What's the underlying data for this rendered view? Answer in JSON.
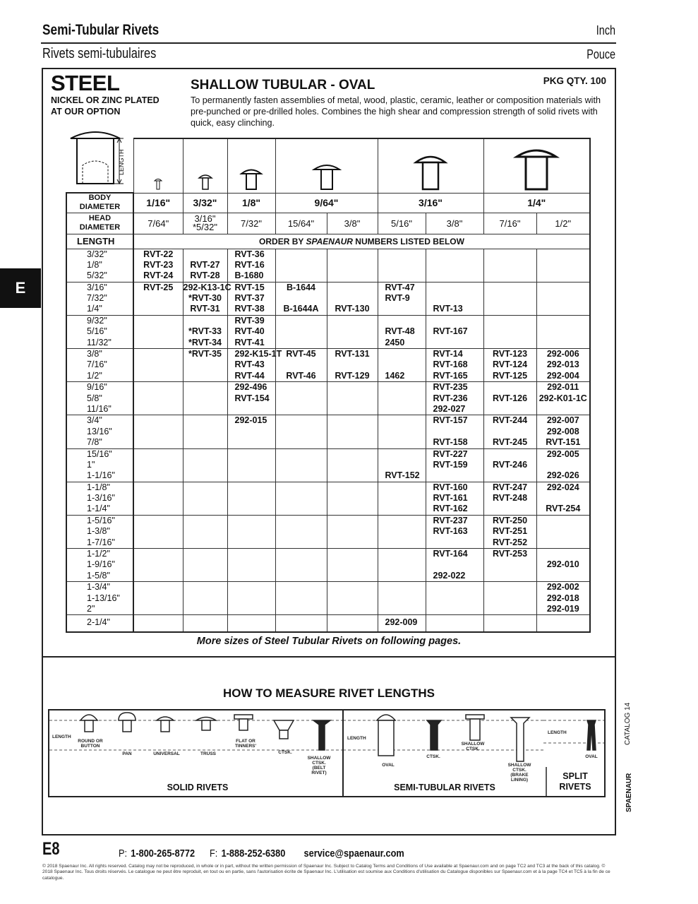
{
  "header": {
    "title_en": "Semi-Tubular Rivets",
    "unit_en": "Inch",
    "title_fr": "Rivets semi-tubulaires",
    "unit_fr": "Pouce"
  },
  "section_tab": "E",
  "product": {
    "material": "STEEL",
    "plating_line1": "NICKEL OR ZINC PLATED",
    "plating_line2": "AT OUR OPTION",
    "title": "SHALLOW TUBULAR - OVAL",
    "pkg_qty": "PKG QTY. 100",
    "description": "To permanently fasten assemblies of metal, wood, plastic, ceramic, leather or composition materials with pre-punched or pre-drilled holes.  Combines the high shear and compression strength of solid rivets with quick, easy clinching.",
    "diagram_label": "LENGTH"
  },
  "table": {
    "body_label_1": "BODY",
    "body_label_2": "DIAMETER",
    "head_label_1": "HEAD",
    "head_label_2": "DIAMETER",
    "length_label": "LENGTH",
    "order_prefix": "ORDER BY ",
    "order_brand": "SPAENAUR",
    "order_suffix": "  NUMBERS LISTED BELOW",
    "body_diameters": [
      "1/16\"",
      "3/32\"",
      "1/8\"",
      "9/64\"",
      "3/16\"",
      "1/4\""
    ],
    "head_diameters": [
      "7/64\"",
      "3/16\"",
      "*5/32\"",
      "7/32\"",
      "15/64\"",
      "3/8\"",
      "5/16\"",
      "3/8\"",
      "7/16\"",
      "1/2\""
    ],
    "groups": [
      [
        [
          "3/32\"",
          "RVT-22",
          "",
          "RVT-36",
          "",
          "",
          "",
          "",
          "",
          ""
        ],
        [
          "1/8\"",
          "RVT-23",
          "RVT-27",
          "RVT-16",
          "",
          "",
          "",
          "",
          "",
          ""
        ],
        [
          "5/32\"",
          "RVT-24",
          "RVT-28",
          "B-1680",
          "",
          "",
          "",
          "",
          "",
          ""
        ]
      ],
      [
        [
          "3/16\"",
          "RVT-25",
          "292-K13-1C",
          "RVT-15",
          "B-1644",
          "",
          "RVT-47",
          "",
          "",
          ""
        ],
        [
          "7/32\"",
          "",
          "*RVT-30",
          "RVT-37",
          "",
          "",
          "RVT-9",
          "",
          "",
          ""
        ],
        [
          "1/4\"",
          "",
          "RVT-31",
          "RVT-38",
          "B-1644A",
          "RVT-130",
          "",
          "RVT-13",
          "",
          ""
        ]
      ],
      [
        [
          "9/32\"",
          "",
          "",
          "RVT-39",
          "",
          "",
          "",
          "",
          "",
          ""
        ],
        [
          "5/16\"",
          "",
          "*RVT-33",
          "RVT-40",
          "",
          "",
          "RVT-48",
          "RVT-167",
          "",
          ""
        ],
        [
          "11/32\"",
          "",
          "*RVT-34",
          "RVT-41",
          "",
          "",
          "2450",
          "",
          "",
          ""
        ]
      ],
      [
        [
          "3/8\"",
          "",
          "*RVT-35",
          "292-K15-1T",
          "RVT-45",
          "RVT-131",
          "",
          "RVT-14",
          "RVT-123",
          "292-006"
        ],
        [
          "7/16\"",
          "",
          "",
          "RVT-43",
          "",
          "",
          "",
          "RVT-168",
          "RVT-124",
          "292-013"
        ],
        [
          "1/2\"",
          "",
          "",
          "RVT-44",
          "RVT-46",
          "RVT-129",
          "1462",
          "RVT-165",
          "RVT-125",
          "292-004"
        ]
      ],
      [
        [
          "9/16\"",
          "",
          "",
          "292-496",
          "",
          "",
          "",
          "RVT-235",
          "",
          "292-011"
        ],
        [
          "5/8\"",
          "",
          "",
          "RVT-154",
          "",
          "",
          "",
          "RVT-236",
          "RVT-126",
          "292-K01-1C"
        ],
        [
          "11/16\"",
          "",
          "",
          "",
          "",
          "",
          "",
          "292-027",
          "",
          ""
        ]
      ],
      [
        [
          "3/4\"",
          "",
          "",
          "292-015",
          "",
          "",
          "",
          "RVT-157",
          "RVT-244",
          "292-007"
        ],
        [
          "13/16\"",
          "",
          "",
          "",
          "",
          "",
          "",
          "",
          "",
          "292-008"
        ],
        [
          "7/8\"",
          "",
          "",
          "",
          "",
          "",
          "",
          "RVT-158",
          "RVT-245",
          "RVT-151"
        ]
      ],
      [
        [
          "15/16\"",
          "",
          "",
          "",
          "",
          "",
          "",
          "RVT-227",
          "",
          "292-005"
        ],
        [
          "1\"",
          "",
          "",
          "",
          "",
          "",
          "",
          "RVT-159",
          "RVT-246",
          ""
        ],
        [
          "1-1/16\"",
          "",
          "",
          "",
          "",
          "",
          "RVT-152",
          "",
          "",
          "292-026"
        ]
      ],
      [
        [
          "1-1/8\"",
          "",
          "",
          "",
          "",
          "",
          "",
          "RVT-160",
          "RVT-247",
          "292-024"
        ],
        [
          "1-3/16\"",
          "",
          "",
          "",
          "",
          "",
          "",
          "RVT-161",
          "RVT-248",
          ""
        ],
        [
          "1-1/4\"",
          "",
          "",
          "",
          "",
          "",
          "",
          "RVT-162",
          "",
          "RVT-254"
        ]
      ],
      [
        [
          "1-5/16\"",
          "",
          "",
          "",
          "",
          "",
          "",
          "RVT-237",
          "RVT-250",
          ""
        ],
        [
          "1-3/8\"",
          "",
          "",
          "",
          "",
          "",
          "",
          "RVT-163",
          "RVT-251",
          ""
        ],
        [
          "1-7/16\"",
          "",
          "",
          "",
          "",
          "",
          "",
          "",
          "RVT-252",
          ""
        ]
      ],
      [
        [
          "1-1/2\"",
          "",
          "",
          "",
          "",
          "",
          "",
          "RVT-164",
          "RVT-253",
          ""
        ],
        [
          "1-9/16\"",
          "",
          "",
          "",
          "",
          "",
          "",
          "",
          "",
          "292-010"
        ],
        [
          "1-5/8\"",
          "",
          "",
          "",
          "",
          "",
          "",
          "292-022",
          "",
          ""
        ]
      ],
      [
        [
          "1-3/4\"",
          "",
          "",
          "",
          "",
          "",
          "",
          "",
          "",
          "292-002"
        ],
        [
          "1-13/16\"",
          "",
          "",
          "",
          "",
          "",
          "",
          "",
          "",
          "292-018"
        ],
        [
          "2\"",
          "",
          "",
          "",
          "",
          "",
          "",
          "",
          "",
          "292-019"
        ]
      ],
      [
        [
          "2-1/4\"",
          "",
          "",
          "",
          "",
          "",
          "292-009",
          "",
          "",
          ""
        ]
      ]
    ]
  },
  "more_sizes": "More sizes of Steel Tubular Rivets on following pages.",
  "measure": {
    "title": "HOW TO MEASURE RIVET LENGTHS",
    "labels": [
      "LENGTH",
      "ROUND OR BUTTON",
      "PAN",
      "UNIVERSAL",
      "TRUSS",
      "FLAT OR TINNERS'",
      "CTSK.",
      "SHALLOW CTSK. (BELT RIVET)",
      "LENGTH",
      "OVAL",
      "CTSK.",
      "SHALLOW CTSK.",
      "SHALLOW CTSK. (BRAKE LINING)",
      "LENGTH",
      "OVAL"
    ],
    "sections": [
      "SOLID RIVETS",
      "SEMI-TUBULAR RIVETS",
      "SPLIT RIVETS"
    ]
  },
  "side": {
    "catalog": "CATALOG 14",
    "brand": "SPAENAUR"
  },
  "footer": {
    "page": "E8",
    "phone_prefix": "P: ",
    "phone": "1-800-265-8772",
    "fax_prefix": "F: ",
    "fax": "1-888-252-6380",
    "email": "service@spaenaur.com",
    "copyright": "© 2018 Spaenaur Inc. All rights reserved. Catalog may not be reproduced, in whole or in part, without the written permission of Spaenaur Inc. Subject to Catalog Terms and Conditions of Use available at Spaenaur.com and on page TC2 and TC3 at the back of this catalog. © 2018 Spaenaur Inc. Tous droits réservés. Le catalogue ne peut être reproduit, en tout ou en partie, sans l'autorisation écrite de Spaenaur Inc. L'utilisation est soumise aux Conditions d'utilisation du Catalogue disponibles sur Spaenaur.com et à la page TC4 et TC5 à la fin de ce catalogue."
  }
}
